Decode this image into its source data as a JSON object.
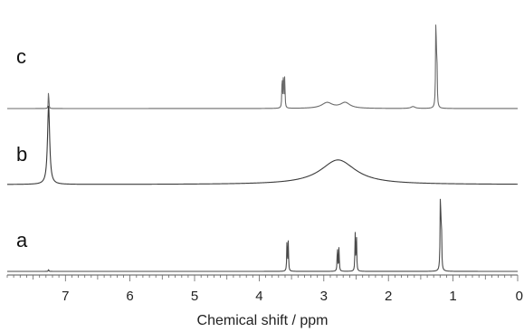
{
  "chart_data": {
    "type": "line",
    "title": "",
    "xlabel": "Chemical shift / ppm",
    "ylabel": "",
    "xlim": [
      7.9,
      0
    ],
    "x_reversed": true,
    "grid": false,
    "legend": "none",
    "tick_labels": [
      "7",
      "6",
      "5",
      "4",
      "3",
      "2",
      "1",
      "0"
    ],
    "tick_values": [
      7,
      6,
      5,
      4,
      3,
      2,
      1,
      0
    ],
    "minor_tick_step": 0.1,
    "series": [
      {
        "name": "c",
        "color": "#6a6a6a",
        "baseline": 0,
        "peaks": [
          {
            "ppm": 7.26,
            "height": 0.23,
            "width": 0.004
          },
          {
            "ppm": 3.645,
            "height": 0.36,
            "width": 0.005
          },
          {
            "ppm": 3.625,
            "height": 0.37,
            "width": 0.005
          },
          {
            "ppm": 3.605,
            "height": 0.34,
            "width": 0.005
          },
          {
            "ppm": 2.95,
            "height": 0.06,
            "width": 0.1
          },
          {
            "ppm": 2.67,
            "height": 0.06,
            "width": 0.09
          },
          {
            "ppm": 1.62,
            "height": 0.02,
            "width": 0.04
          },
          {
            "ppm": 1.265,
            "height": 1.0,
            "width": 0.006
          },
          {
            "ppm": 1.25,
            "height": 0.55,
            "width": 0.005
          }
        ]
      },
      {
        "name": "b",
        "color": "#3a3a3a",
        "baseline": 0,
        "peaks": [
          {
            "ppm": 7.26,
            "height": 0.55,
            "width": 0.02
          },
          {
            "ppm": 2.78,
            "height": 0.17,
            "width": 0.33
          }
        ]
      },
      {
        "name": "a",
        "color": "#4a4a4a",
        "baseline": 0,
        "peaks": [
          {
            "ppm": 7.26,
            "height": 0.03,
            "width": 0.004
          },
          {
            "ppm": 3.57,
            "height": 0.38,
            "width": 0.005
          },
          {
            "ppm": 3.55,
            "height": 0.36,
            "width": 0.005
          },
          {
            "ppm": 2.79,
            "height": 0.32,
            "width": 0.005
          },
          {
            "ppm": 2.765,
            "height": 0.3,
            "width": 0.005
          },
          {
            "ppm": 2.515,
            "height": 0.46,
            "width": 0.005
          },
          {
            "ppm": 2.495,
            "height": 0.44,
            "width": 0.005
          },
          {
            "ppm": 1.195,
            "height": 1.0,
            "width": 0.006
          },
          {
            "ppm": 1.18,
            "height": 0.6,
            "width": 0.005
          }
        ]
      }
    ]
  }
}
